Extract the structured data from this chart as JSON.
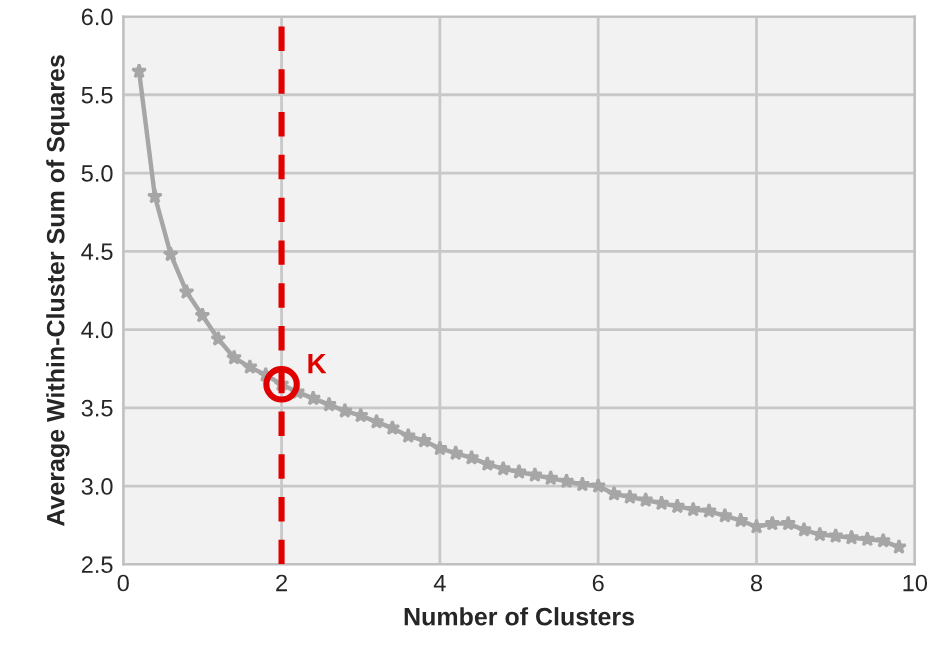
{
  "chart_data": {
    "type": "line",
    "xlabel": "Number of Clusters",
    "ylabel": "Average Within-Cluster Sum of Squares",
    "x": [
      0.2,
      0.4,
      0.6,
      0.8,
      1.0,
      1.2,
      1.4,
      1.6,
      1.8,
      2.0,
      2.2,
      2.4,
      2.6,
      2.8,
      3.0,
      3.2,
      3.4,
      3.6,
      3.8,
      4.0,
      4.2,
      4.4,
      4.6,
      4.8,
      5.0,
      5.2,
      5.4,
      5.6,
      5.8,
      6.0,
      6.2,
      6.4,
      6.6,
      6.8,
      7.0,
      7.2,
      7.4,
      7.6,
      7.8,
      8.0,
      8.2,
      8.4,
      8.6,
      8.8,
      9.0,
      9.2,
      9.4,
      9.6,
      9.8
    ],
    "series": [
      {
        "color": "#a6a6a6",
        "marker": "star",
        "values": [
          5.65,
          4.85,
          4.48,
          4.24,
          4.09,
          3.94,
          3.82,
          3.76,
          3.71,
          3.65,
          3.6,
          3.56,
          3.52,
          3.48,
          3.45,
          3.41,
          3.37,
          3.32,
          3.29,
          3.24,
          3.21,
          3.18,
          3.14,
          3.11,
          3.09,
          3.07,
          3.05,
          3.03,
          3.01,
          3.0,
          2.95,
          2.93,
          2.91,
          2.89,
          2.87,
          2.85,
          2.84,
          2.81,
          2.78,
          2.74,
          2.76,
          2.76,
          2.72,
          2.69,
          2.68,
          2.67,
          2.66,
          2.65,
          2.61
        ]
      },
      {
        "type": "scatter",
        "color": "#e00000",
        "marker": "circle",
        "x": [
          2.0
        ],
        "values": [
          3.65
        ]
      }
    ],
    "ref_lines": [
      {
        "axis": "x",
        "value": 2,
        "color": "#e00000",
        "line_style": "dashed"
      }
    ],
    "annotations": [
      {
        "text": "K",
        "x": 2,
        "y": 3.65
      }
    ],
    "xlim": [
      0,
      10
    ],
    "xticks": [
      0,
      2,
      4,
      6,
      8,
      10
    ],
    "ylim": [
      2.5,
      6.0
    ],
    "yticks": [
      {
        "value": 2.5,
        "label": "2.5"
      },
      {
        "value": 3.0,
        "label": "3.0"
      },
      {
        "value": 3.5,
        "label": "3.5"
      },
      {
        "value": 4.0,
        "label": "4.0"
      },
      {
        "value": 4.5,
        "label": "4.5"
      },
      {
        "value": 5.0,
        "label": "5.0"
      },
      {
        "value": 5.5,
        "label": "5.5"
      },
      {
        "value": 6.0,
        "label": "6.0"
      }
    ],
    "grid": true
  }
}
